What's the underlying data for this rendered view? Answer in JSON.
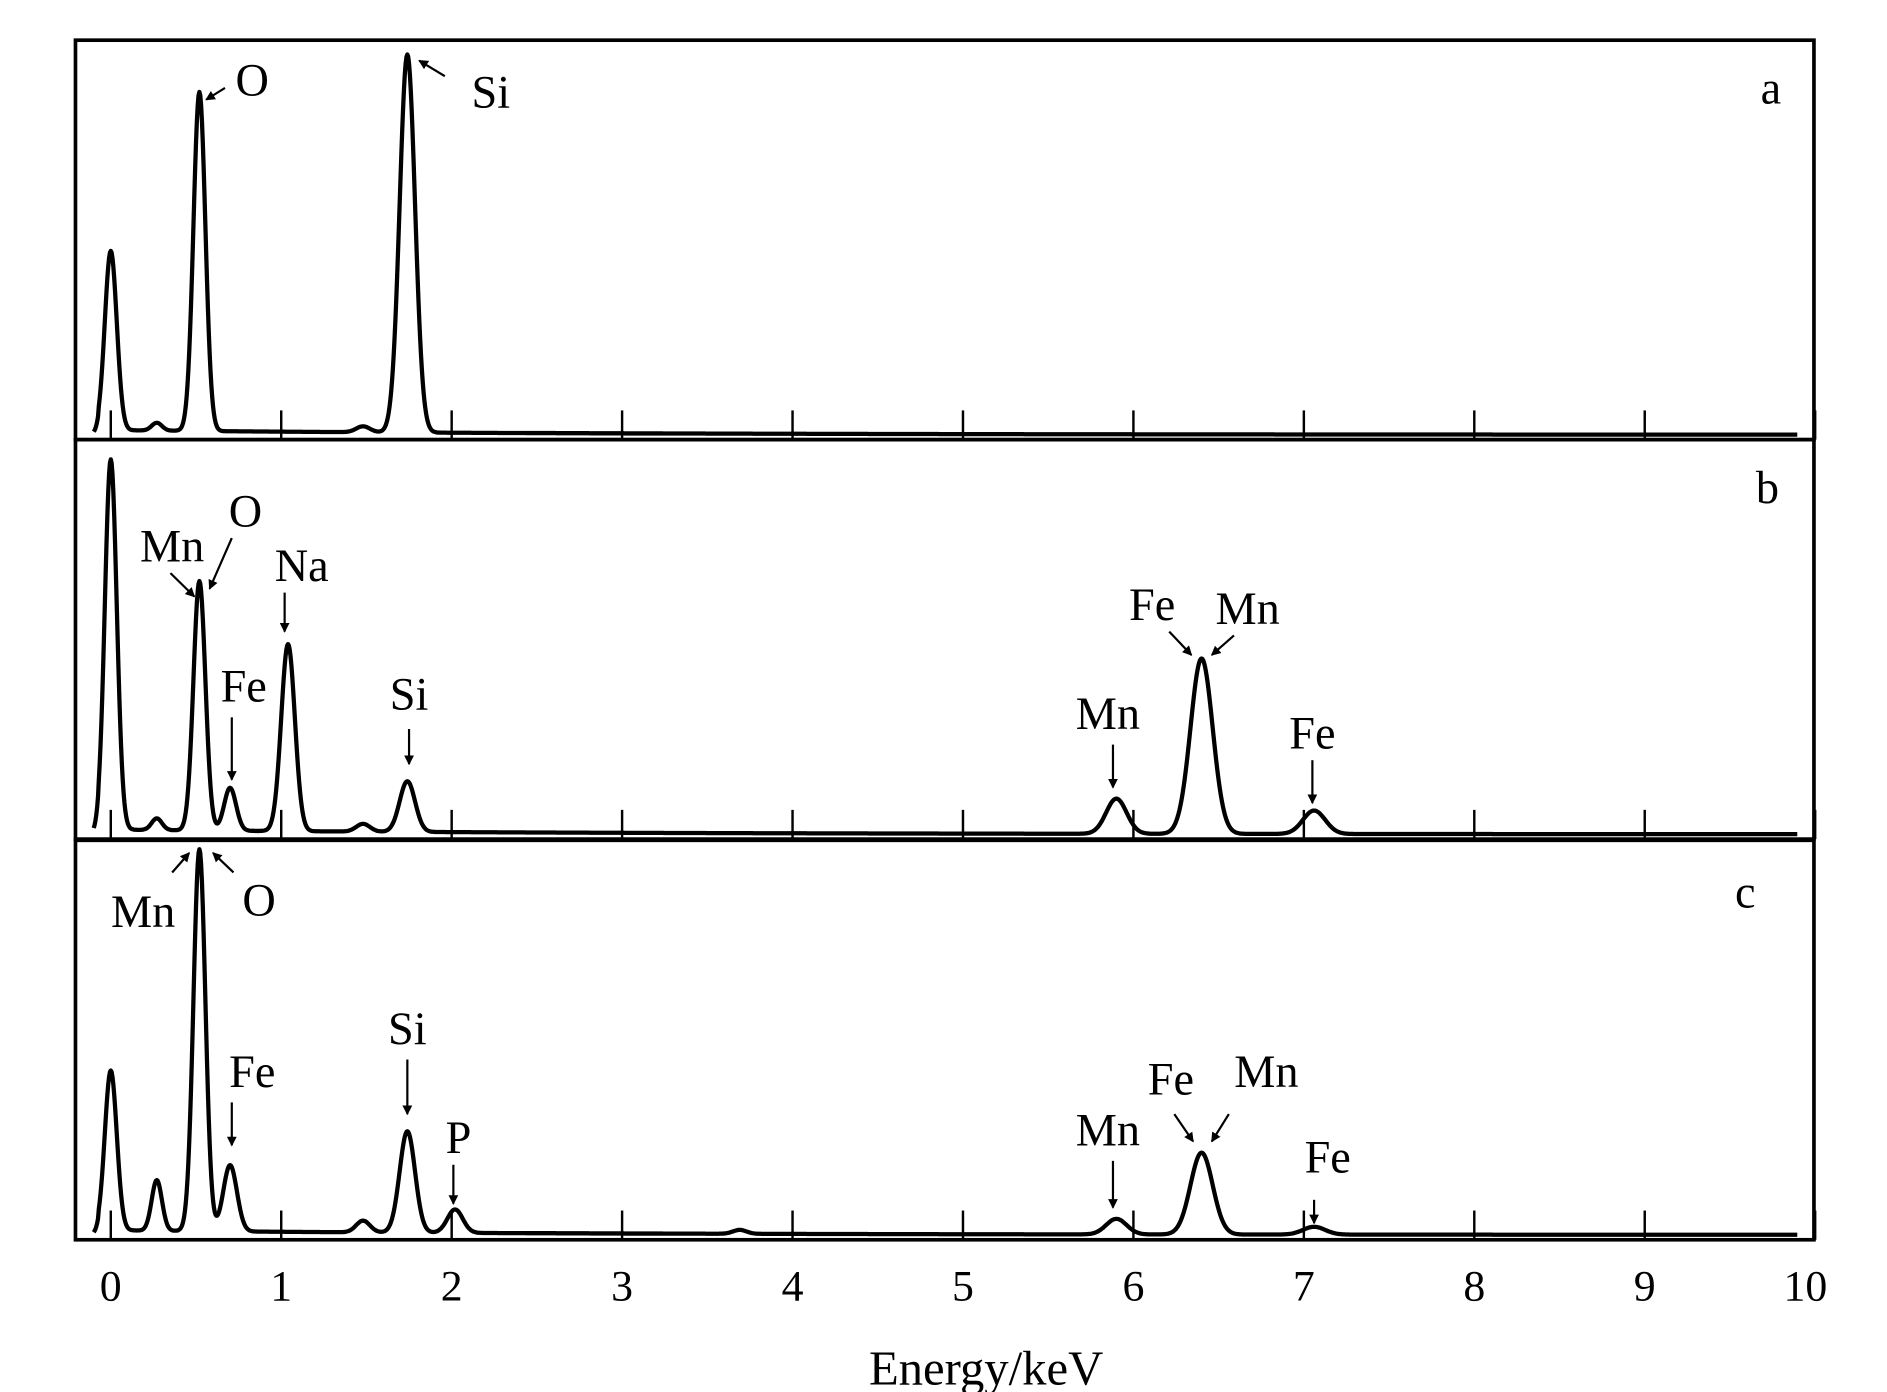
{
  "chart_data": {
    "type": "line",
    "title": "",
    "xlabel": "Energy/keV",
    "ylabel": "",
    "xlim": [
      -0.2,
      10
    ],
    "x_ticks": [
      "0",
      "1",
      "2",
      "3",
      "4",
      "5",
      "6",
      "7",
      "8",
      "9",
      "10"
    ],
    "grid": false,
    "line_color": "#000000",
    "panels": [
      {
        "name": "a",
        "label": "a",
        "label_pos": [
          9.74,
          0.85
        ],
        "peaks": [
          {
            "energy": 0.0,
            "intensity": 0.46,
            "sigma": 0.035
          },
          {
            "energy": 0.27,
            "intensity": 0.02,
            "sigma": 0.03
          },
          {
            "energy": 0.52,
            "intensity": 0.87,
            "sigma": 0.035
          },
          {
            "energy": 1.48,
            "intensity": 0.015,
            "sigma": 0.04
          },
          {
            "energy": 1.74,
            "intensity": 0.97,
            "sigma": 0.045
          }
        ],
        "annotations": [
          {
            "text": "O",
            "pos": [
              0.83,
              0.87
            ],
            "arrow": [
              [
                0.67,
                0.89
              ],
              [
                0.56,
                0.86
              ]
            ]
          },
          {
            "text": "Si",
            "pos": [
              2.23,
              0.84
            ],
            "arrow": [
              [
                1.96,
                0.92
              ],
              [
                1.81,
                0.96
              ]
            ]
          }
        ]
      },
      {
        "name": "b",
        "label": "b",
        "label_pos": [
          9.72,
          0.85
        ],
        "peaks": [
          {
            "energy": 0.0,
            "intensity": 0.95,
            "sigma": 0.035
          },
          {
            "energy": 0.27,
            "intensity": 0.03,
            "sigma": 0.03
          },
          {
            "energy": 0.52,
            "intensity": 0.64,
            "sigma": 0.035
          },
          {
            "energy": 0.7,
            "intensity": 0.11,
            "sigma": 0.035
          },
          {
            "energy": 1.04,
            "intensity": 0.48,
            "sigma": 0.04
          },
          {
            "energy": 1.48,
            "intensity": 0.02,
            "sigma": 0.04
          },
          {
            "energy": 1.74,
            "intensity": 0.13,
            "sigma": 0.045
          },
          {
            "energy": 5.9,
            "intensity": 0.09,
            "sigma": 0.06
          },
          {
            "energy": 6.4,
            "intensity": 0.45,
            "sigma": 0.065
          },
          {
            "energy": 7.06,
            "intensity": 0.06,
            "sigma": 0.065
          }
        ],
        "annotations": [
          {
            "text": "O",
            "pos": [
              0.79,
              0.79
            ],
            "arrow": [
              [
                0.71,
                0.76
              ],
              [
                0.58,
                0.63
              ]
            ]
          },
          {
            "text": "Mn",
            "pos": [
              0.36,
              0.7
            ],
            "arrow": [
              [
                0.35,
                0.67
              ],
              [
                0.49,
                0.61
              ]
            ]
          },
          {
            "text": "Na",
            "pos": [
              1.12,
              0.65
            ],
            "arrow": [
              [
                1.02,
                0.62
              ],
              [
                1.02,
                0.52
              ]
            ]
          },
          {
            "text": "Fe",
            "pos": [
              0.78,
              0.34
            ],
            "arrow": [
              [
                0.71,
                0.3
              ],
              [
                0.71,
                0.14
              ]
            ]
          },
          {
            "text": "Si",
            "pos": [
              1.75,
              0.32
            ],
            "arrow": [
              [
                1.75,
                0.27
              ],
              [
                1.75,
                0.18
              ]
            ]
          },
          {
            "text": "Mn",
            "pos": [
              5.85,
              0.27
            ],
            "arrow": [
              [
                5.88,
                0.23
              ],
              [
                5.88,
                0.12
              ]
            ]
          },
          {
            "text": "Fe",
            "pos": [
              6.11,
              0.55
            ],
            "arrow": [
              [
                6.21,
                0.52
              ],
              [
                6.34,
                0.46
              ]
            ]
          },
          {
            "text": "Mn",
            "pos": [
              6.67,
              0.54
            ],
            "arrow": [
              [
                6.59,
                0.51
              ],
              [
                6.46,
                0.46
              ]
            ]
          },
          {
            "text": "Fe",
            "pos": [
              7.05,
              0.22
            ],
            "arrow": [
              [
                7.05,
                0.19
              ],
              [
                7.05,
                0.08
              ]
            ]
          }
        ]
      },
      {
        "name": "c",
        "label": "c",
        "label_pos": [
          9.59,
          0.84
        ],
        "peaks": [
          {
            "energy": 0.0,
            "intensity": 0.41,
            "sigma": 0.035
          },
          {
            "energy": 0.27,
            "intensity": 0.13,
            "sigma": 0.03
          },
          {
            "energy": 0.52,
            "intensity": 0.98,
            "sigma": 0.035
          },
          {
            "energy": 0.7,
            "intensity": 0.17,
            "sigma": 0.04
          },
          {
            "energy": 1.48,
            "intensity": 0.03,
            "sigma": 0.04
          },
          {
            "energy": 1.74,
            "intensity": 0.26,
            "sigma": 0.045
          },
          {
            "energy": 2.02,
            "intensity": 0.06,
            "sigma": 0.045
          },
          {
            "energy": 3.69,
            "intensity": 0.01,
            "sigma": 0.04
          },
          {
            "energy": 5.9,
            "intensity": 0.04,
            "sigma": 0.06
          },
          {
            "energy": 6.4,
            "intensity": 0.21,
            "sigma": 0.065
          },
          {
            "energy": 7.06,
            "intensity": 0.02,
            "sigma": 0.065
          }
        ],
        "annotations": [
          {
            "text": "Mn",
            "pos": [
              0.19,
              0.79
            ],
            "arrow": [
              [
                0.36,
                0.93
              ],
              [
                0.46,
                0.98
              ]
            ]
          },
          {
            "text": "O",
            "pos": [
              0.87,
              0.82
            ],
            "arrow": [
              [
                0.72,
                0.93
              ],
              [
                0.6,
                0.98
              ]
            ]
          },
          {
            "text": "Fe",
            "pos": [
              0.83,
              0.38
            ],
            "arrow": [
              [
                0.71,
                0.34
              ],
              [
                0.71,
                0.23
              ]
            ]
          },
          {
            "text": "Si",
            "pos": [
              1.74,
              0.49
            ],
            "arrow": [
              [
                1.74,
                0.45
              ],
              [
                1.74,
                0.31
              ]
            ]
          },
          {
            "text": "P",
            "pos": [
              2.04,
              0.21
            ],
            "arrow": [
              [
                2.01,
                0.18
              ],
              [
                2.01,
                0.08
              ]
            ]
          },
          {
            "text": "Mn",
            "pos": [
              5.85,
              0.23
            ],
            "arrow": [
              [
                5.88,
                0.19
              ],
              [
                5.88,
                0.07
              ]
            ]
          },
          {
            "text": "Fe",
            "pos": [
              6.22,
              0.36
            ],
            "arrow": [
              [
                6.24,
                0.31
              ],
              [
                6.35,
                0.24
              ]
            ]
          },
          {
            "text": "Mn",
            "pos": [
              6.78,
              0.38
            ],
            "arrow": [
              [
                6.56,
                0.31
              ],
              [
                6.46,
                0.24
              ]
            ]
          },
          {
            "text": "Fe",
            "pos": [
              7.14,
              0.16
            ],
            "arrow": [
              [
                7.06,
                0.09
              ],
              [
                7.06,
                0.03
              ]
            ]
          }
        ]
      }
    ]
  }
}
